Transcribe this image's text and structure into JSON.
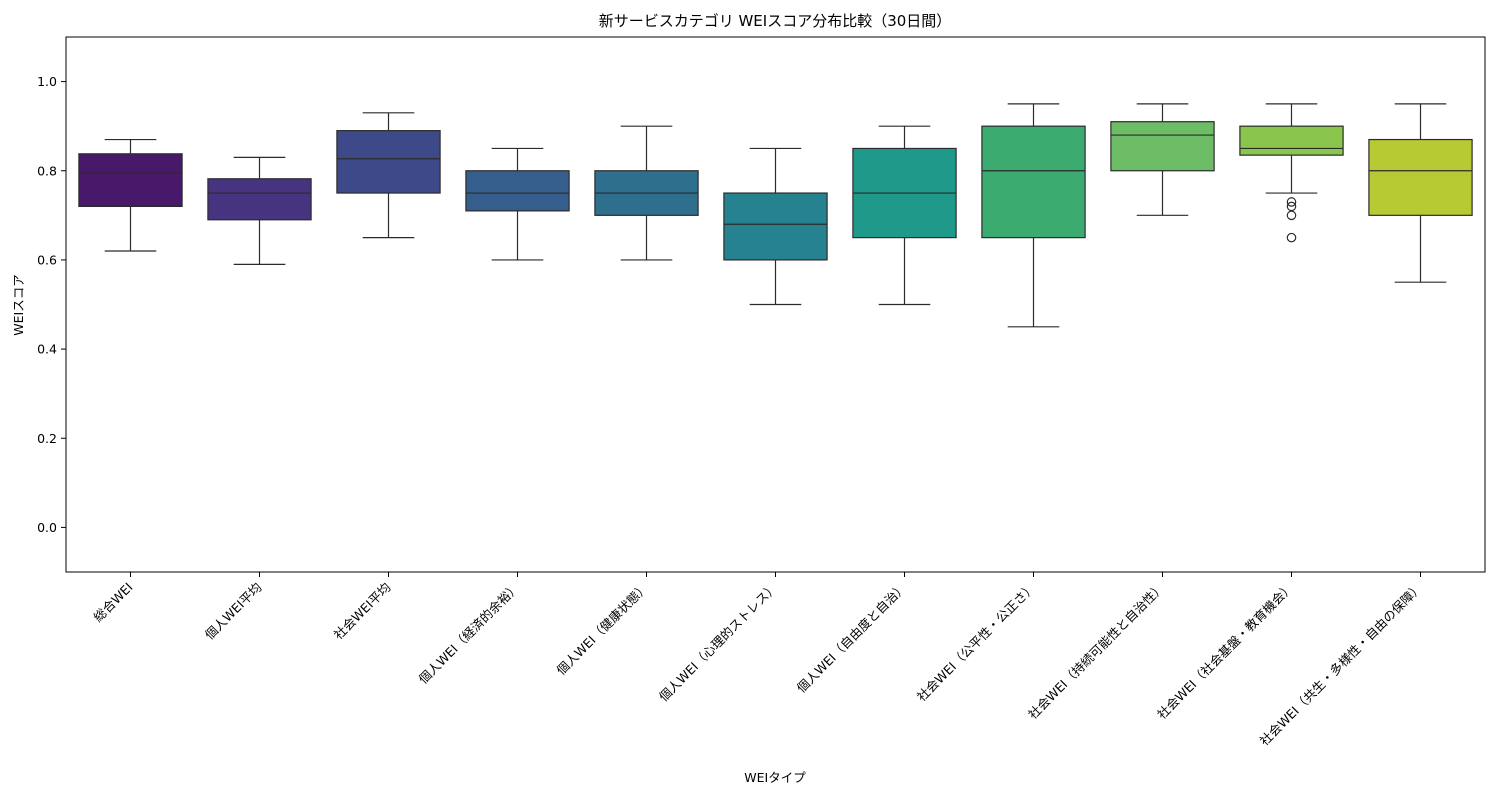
{
  "chart_data": {
    "type": "box",
    "title": "新サービスカテゴリ WEIスコア分布比較（30日間）",
    "xlabel": "WEIタイプ",
    "ylabel": "WEIスコア",
    "ylim": [
      -0.1,
      1.1
    ],
    "yticks": [
      "0.0",
      "0.2",
      "0.4",
      "0.6",
      "0.8",
      "1.0"
    ],
    "grid": false,
    "legend": "none",
    "palette": "viridis",
    "categories": [
      "総合WEI",
      "個人WEI平均",
      "社会WEI平均",
      "個人WEI（経済的余裕）",
      "個人WEI（健康状態）",
      "個人WEI（心理的ストレス）",
      "個人WEI（自由度と自治）",
      "社会WEI（公平性・公正さ）",
      "社会WEI（持続可能性と自治性）",
      "社会WEI（社会基盤・教育機会）",
      "社会WEI（共生・多様性・自由の保障）"
    ],
    "boxes": [
      {
        "whislo": 0.62,
        "q1": 0.72,
        "med": 0.795,
        "q3": 0.838,
        "whishi": 0.87,
        "fliers": [],
        "color": "#48186a"
      },
      {
        "whislo": 0.59,
        "q1": 0.69,
        "med": 0.75,
        "q3": 0.782,
        "whishi": 0.83,
        "fliers": [],
        "color": "#463480"
      },
      {
        "whislo": 0.65,
        "q1": 0.75,
        "med": 0.827,
        "q3": 0.89,
        "whishi": 0.93,
        "fliers": [],
        "color": "#3e4989"
      },
      {
        "whislo": 0.6,
        "q1": 0.71,
        "med": 0.75,
        "q3": 0.8,
        "whishi": 0.85,
        "fliers": [],
        "color": "#355e8d"
      },
      {
        "whislo": 0.6,
        "q1": 0.7,
        "med": 0.75,
        "q3": 0.8,
        "whishi": 0.9,
        "fliers": [],
        "color": "#2e6f8e"
      },
      {
        "whislo": 0.5,
        "q1": 0.6,
        "med": 0.68,
        "q3": 0.75,
        "whishi": 0.85,
        "fliers": [],
        "color": "#26828e"
      },
      {
        "whislo": 0.5,
        "q1": 0.65,
        "med": 0.75,
        "q3": 0.85,
        "whishi": 0.9,
        "fliers": [],
        "color": "#1f9a8a"
      },
      {
        "whislo": 0.45,
        "q1": 0.65,
        "med": 0.8,
        "q3": 0.9,
        "whishi": 0.95,
        "fliers": [],
        "color": "#3bab70"
      },
      {
        "whislo": 0.7,
        "q1": 0.8,
        "med": 0.88,
        "q3": 0.91,
        "whishi": 0.95,
        "fliers": [],
        "color": "#6cbd66"
      },
      {
        "whislo": 0.75,
        "q1": 0.835,
        "med": 0.85,
        "q3": 0.9,
        "whishi": 0.95,
        "fliers": [
          0.73,
          0.72,
          0.7,
          0.65
        ],
        "color": "#8ac64d"
      },
      {
        "whislo": 0.55,
        "q1": 0.7,
        "med": 0.8,
        "q3": 0.87,
        "whishi": 0.95,
        "fliers": [],
        "color": "#b7c933"
      }
    ]
  }
}
